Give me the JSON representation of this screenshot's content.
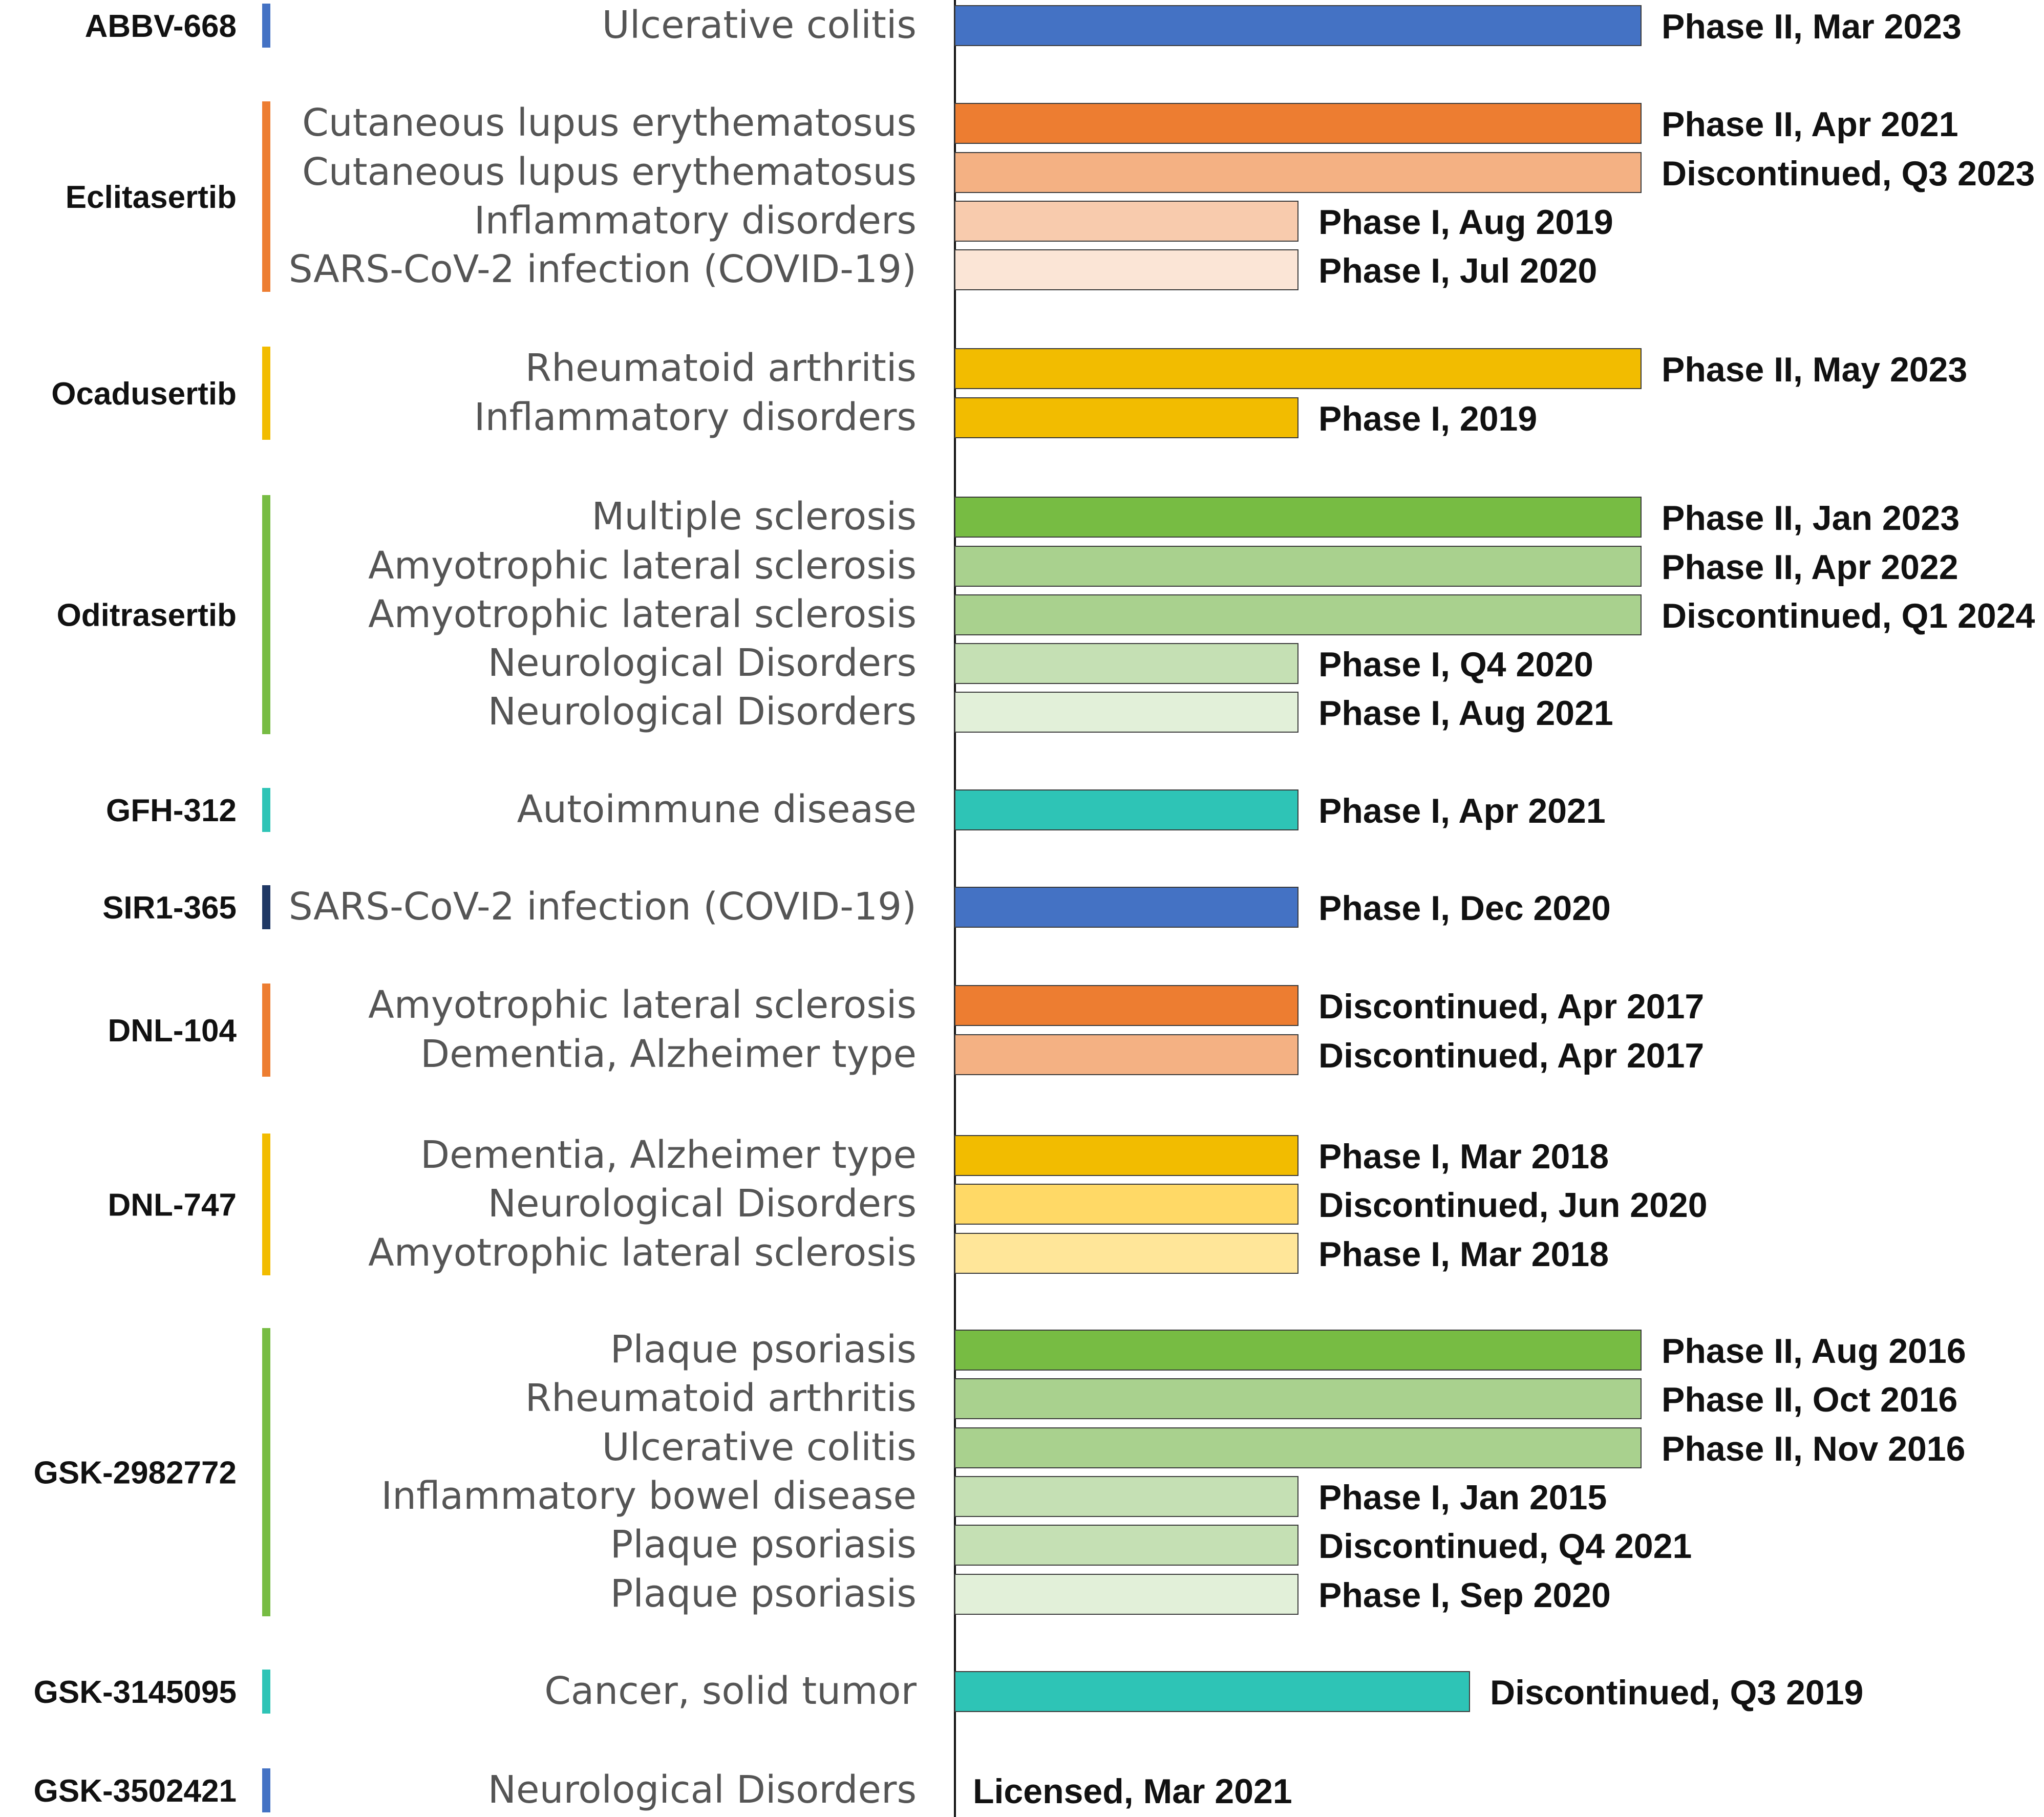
{
  "chart_data": {
    "type": "bar",
    "title": "",
    "xlabel": "",
    "ylabel": "",
    "scale": "development stage: 1 = Phase I, 2 = Phase II",
    "groups": [
      {
        "drug": "ABBV-668",
        "color": "#4472C4",
        "items": [
          {
            "indication": "Ulcerative colitis",
            "status": "Phase II, Mar 2023",
            "value": 2,
            "color": "#4472C4"
          }
        ]
      },
      {
        "drug": "Eclitasertib",
        "color": "#ED7D31",
        "items": [
          {
            "indication": "Cutaneous lupus erythematosus",
            "status": "Phase II, Apr 2021",
            "value": 2,
            "color": "#ED7D31"
          },
          {
            "indication": "Cutaneous lupus erythematosus",
            "status": "Discontinued, Q3 2023",
            "value": 2,
            "color": "#F4B183"
          },
          {
            "indication": "Inflammatory disorders",
            "status": "Phase I, Aug 2019",
            "value": 1,
            "color": "#F8CBAD"
          },
          {
            "indication": "SARS-CoV-2 infection (COVID-19)",
            "status": "Phase I, Jul 2020",
            "value": 1,
            "color": "#FBE5D6"
          }
        ]
      },
      {
        "drug": "Ocadusertib",
        "color": "#F2BC00",
        "items": [
          {
            "indication": "Rheumatoid arthritis",
            "status": "Phase II, May 2023",
            "value": 2,
            "color": "#F2BC00"
          },
          {
            "indication": "Inflammatory disorders",
            "status": "Phase I, 2019",
            "value": 1,
            "color": "#F2BC00"
          }
        ]
      },
      {
        "drug": "Oditrasertib",
        "color": "#77BC43",
        "items": [
          {
            "indication": "Multiple sclerosis",
            "status": "Phase II, Jan 2023",
            "value": 2,
            "color": "#77BC43"
          },
          {
            "indication": "Amyotrophic lateral sclerosis",
            "status": "Phase II, Apr 2022",
            "value": 2,
            "color": "#A9D18E"
          },
          {
            "indication": "Amyotrophic lateral sclerosis",
            "status": "Discontinued, Q1 2024",
            "value": 2,
            "color": "#A9D18E"
          },
          {
            "indication": "Neurological Disorders",
            "status": "Phase I, Q4 2020",
            "value": 1,
            "color": "#C5E0B4"
          },
          {
            "indication": "Neurological Disorders",
            "status": "Phase I, Aug 2021",
            "value": 1,
            "color": "#E2F0D9"
          }
        ]
      },
      {
        "drug": "GFH-312",
        "color": "#2EC4B6",
        "items": [
          {
            "indication": "Autoimmune disease",
            "status": "Phase I, Apr 2021",
            "value": 1,
            "color": "#2EC4B6"
          }
        ]
      },
      {
        "drug": "SIR1-365",
        "color": "#1F3864",
        "items": [
          {
            "indication": "SARS-CoV-2 infection (COVID-19)",
            "status": "Phase I, Dec 2020",
            "value": 1,
            "color": "#4472C4"
          }
        ]
      },
      {
        "drug": "DNL-104",
        "color": "#ED7D31",
        "items": [
          {
            "indication": "Amyotrophic lateral sclerosis",
            "status": "Discontinued, Apr 2017",
            "value": 1,
            "color": "#ED7D31"
          },
          {
            "indication": "Dementia, Alzheimer type",
            "status": "Discontinued, Apr 2017",
            "value": 1,
            "color": "#F4B183"
          }
        ]
      },
      {
        "drug": "DNL-747",
        "color": "#F2BC00",
        "items": [
          {
            "indication": "Dementia, Alzheimer type",
            "status": "Phase I, Mar 2018",
            "value": 1,
            "color": "#F2BC00"
          },
          {
            "indication": "Neurological Disorders",
            "status": "Discontinued, Jun 2020",
            "value": 1,
            "color": "#FFD966"
          },
          {
            "indication": "Amyotrophic lateral sclerosis",
            "status": "Phase I, Mar 2018",
            "value": 1,
            "color": "#FFE699"
          }
        ]
      },
      {
        "drug": "GSK-2982772",
        "color": "#77BC43",
        "items": [
          {
            "indication": "Plaque psoriasis",
            "status": "Phase II, Aug 2016",
            "value": 2,
            "color": "#77BC43"
          },
          {
            "indication": "Rheumatoid arthritis",
            "status": "Phase II, Oct 2016",
            "value": 2,
            "color": "#A9D18E"
          },
          {
            "indication": "Ulcerative colitis",
            "status": "Phase II, Nov 2016",
            "value": 2,
            "color": "#A9D18E"
          },
          {
            "indication": "Inflammatory bowel disease",
            "status": "Phase I, Jan 2015",
            "value": 1,
            "color": "#C5E0B4"
          },
          {
            "indication": "Plaque psoriasis",
            "status": "Discontinued, Q4 2021",
            "value": 1,
            "color": "#C5E0B4"
          },
          {
            "indication": "Plaque psoriasis",
            "status": "Phase I, Sep 2020",
            "value": 1,
            "color": "#E2F0D9"
          }
        ]
      },
      {
        "drug": "GSK-3145095",
        "color": "#2EC4B6",
        "items": [
          {
            "indication": "Cancer, solid tumor",
            "status": "Discontinued, Q3 2019",
            "value": 1.5,
            "color": "#2EC4B6"
          }
        ]
      },
      {
        "drug": "GSK-3502421",
        "color": "#4472C4",
        "items": [
          {
            "indication": "Neurological Disorders",
            "status": "Licensed, Mar 2021",
            "value": 0,
            "color": "#4472C4"
          }
        ]
      }
    ]
  }
}
